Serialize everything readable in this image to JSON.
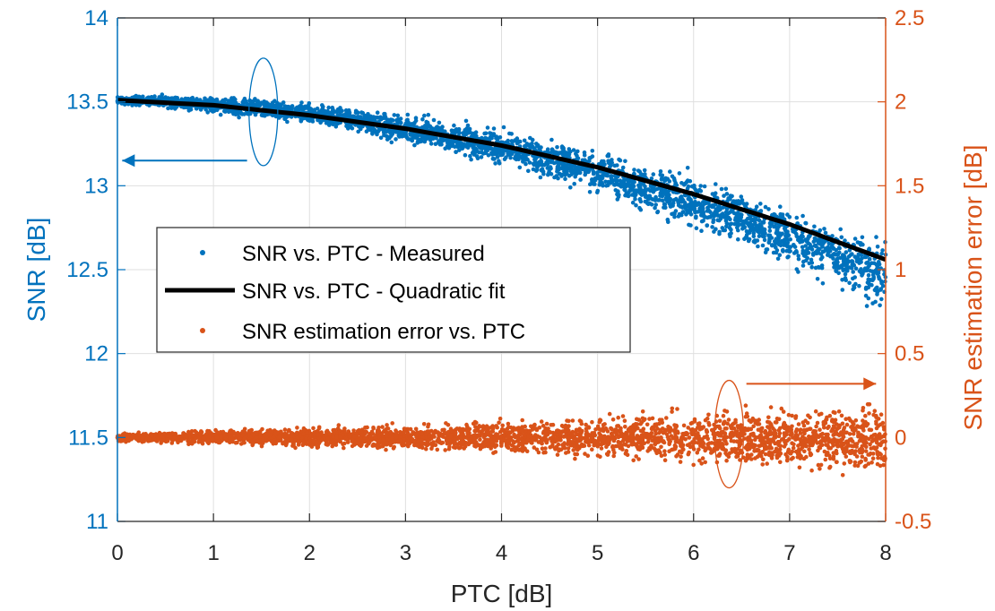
{
  "chart_data": {
    "type": "scatter",
    "title": "",
    "xlabel": "PTC [dB]",
    "ylabel_left": "SNR [dB]",
    "ylabel_right": "SNR estimation error [dB]",
    "xlim": [
      0,
      8
    ],
    "ylim_left": [
      11,
      14
    ],
    "ylim_right": [
      -0.5,
      2.5
    ],
    "x_ticks": [
      "0",
      "1",
      "2",
      "3",
      "4",
      "5",
      "6",
      "7",
      "8"
    ],
    "y_left_ticks": [
      "11",
      "11.5",
      "12",
      "12.5",
      "13",
      "13.5",
      "14"
    ],
    "y_right_ticks": [
      "-0.5",
      "0",
      "0.5",
      "1",
      "1.5",
      "2",
      "2.5"
    ],
    "grid": true,
    "legend_position": "center-left",
    "colors": {
      "left_axis": "#0072BD",
      "right_axis": "#D95319",
      "fit": "#000000",
      "grid": "#dfdfdf"
    },
    "series": [
      {
        "name": "SNR vs. PTC - Measured",
        "axis": "left",
        "marker": "dot",
        "color": "#0072BD",
        "x": [
          0.0,
          0.5,
          1.0,
          1.5,
          2.0,
          2.5,
          3.0,
          3.5,
          4.0,
          4.5,
          5.0,
          5.5,
          6.0,
          6.5,
          7.0,
          7.5,
          8.0
        ],
        "y_center": [
          13.51,
          13.5,
          13.48,
          13.46,
          13.43,
          13.39,
          13.34,
          13.29,
          13.23,
          13.16,
          13.08,
          12.99,
          12.9,
          12.8,
          12.69,
          12.58,
          12.45
        ],
        "y_spread": [
          0.02,
          0.03,
          0.04,
          0.05,
          0.05,
          0.06,
          0.07,
          0.08,
          0.09,
          0.1,
          0.11,
          0.12,
          0.13,
          0.14,
          0.15,
          0.17,
          0.2
        ]
      },
      {
        "name": "SNR vs. PTC - Quadratic fit",
        "axis": "left",
        "marker": "line",
        "color": "#000000",
        "x": [
          0,
          1,
          2,
          3,
          4,
          5,
          6,
          7,
          8
        ],
        "y": [
          13.51,
          13.48,
          13.42,
          13.34,
          13.24,
          13.11,
          12.95,
          12.77,
          12.56
        ]
      },
      {
        "name": "SNR estimation error vs. PTC",
        "axis": "right",
        "marker": "dot",
        "color": "#D95319",
        "x": [
          0.0,
          0.5,
          1.0,
          1.5,
          2.0,
          2.5,
          3.0,
          3.5,
          4.0,
          4.5,
          5.0,
          5.5,
          6.0,
          6.5,
          7.0,
          7.5,
          8.0
        ],
        "y_center": [
          0.0,
          0.0,
          0.0,
          0.0,
          0.0,
          0.0,
          0.0,
          0.0,
          0.0,
          0.0,
          0.0,
          0.0,
          0.0,
          0.0,
          0.0,
          0.0,
          -0.03
        ],
        "y_spread": [
          0.02,
          0.03,
          0.04,
          0.04,
          0.05,
          0.05,
          0.06,
          0.07,
          0.08,
          0.09,
          0.1,
          0.11,
          0.13,
          0.14,
          0.15,
          0.17,
          0.2
        ]
      }
    ],
    "annotations": [
      {
        "type": "ellipse",
        "axis": "left",
        "cx": 1.52,
        "cy": 13.44,
        "color": "#0072BD"
      },
      {
        "type": "arrow",
        "axis": "left",
        "from": [
          1.35,
          13.15
        ],
        "to": [
          0.05,
          13.15
        ],
        "color": "#0072BD"
      },
      {
        "type": "ellipse",
        "axis": "right",
        "cx": 6.37,
        "cy": 0.02,
        "color": "#D95319"
      },
      {
        "type": "arrow",
        "axis": "right",
        "from": [
          6.55,
          0.32
        ],
        "to": [
          7.9,
          0.32
        ],
        "color": "#D95319"
      }
    ]
  }
}
